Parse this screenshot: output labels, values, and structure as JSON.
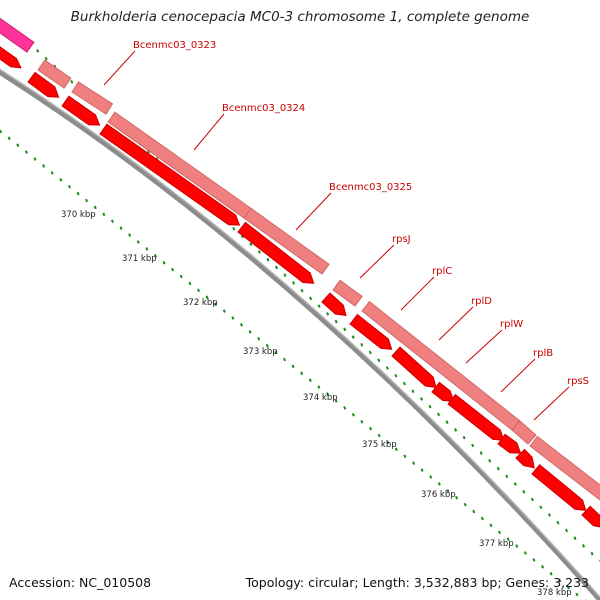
{
  "title": "Burkholderia cenocepacia MC0-3 chromosome 1, complete genome",
  "accession": "Accession: NC_010508",
  "summary": "Topology: circular; Length: 3,532,883 bp; Genes: 3,233",
  "colors": {
    "backbone": "#8c8c8c",
    "gene_forward": "#ff0000",
    "gene_forward_edge": "#cc0000",
    "gene_backdrop": "#f08080",
    "other_feature": "#ff3399",
    "label": "#cc0000",
    "tick": "#1a8a1a"
  },
  "scale": {
    "labels": [
      "370 kbp",
      "371 kbp",
      "372 kbp",
      "373 kbp",
      "374 kbp",
      "375 kbp",
      "376 kbp",
      "377 kbp",
      "378 kbp"
    ]
  },
  "genes": [
    {
      "name": "Bcenmc03_0323"
    },
    {
      "name": "Bcenmc03_0324"
    },
    {
      "name": "Bcenmc03_0325"
    },
    {
      "name": "rpsJ"
    },
    {
      "name": "rplC"
    },
    {
      "name": "rplD"
    },
    {
      "name": "rplW"
    },
    {
      "name": "rplB"
    },
    {
      "name": "rpsS"
    }
  ]
}
